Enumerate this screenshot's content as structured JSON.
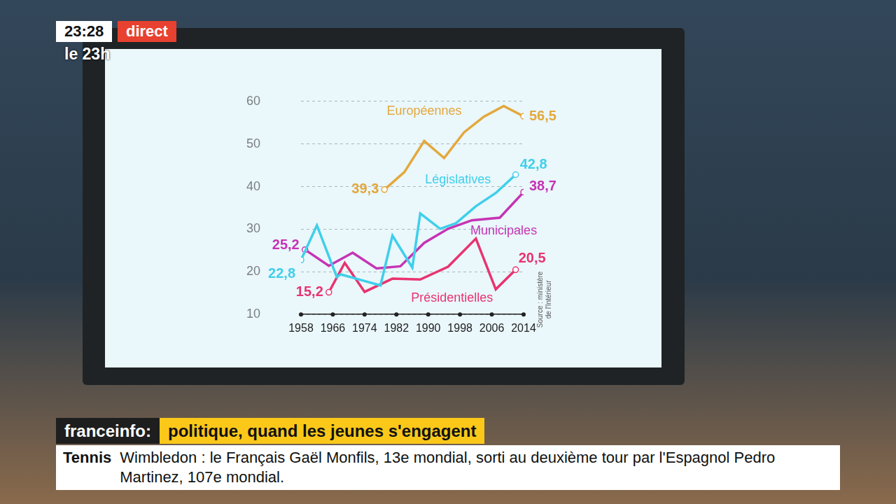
{
  "header": {
    "time": "23:28",
    "live": "direct",
    "program": "le 23h"
  },
  "banner": {
    "channel": "franceinfo:",
    "headline": "politique, quand les jeunes s'engagent"
  },
  "ticker": {
    "topic": "Tennis",
    "text": "Wimbledon : le Français Gaël Monfils, 13e mondial, sorti au deuxième tour par l'Espagnol Pedro Martinez, 107e mondial."
  },
  "chart_data": {
    "type": "line",
    "source": "Source : ministère de l'Intérieur",
    "xlim": [
      1958,
      2014
    ],
    "xticks": [
      1958,
      1966,
      1974,
      1982,
      1990,
      1998,
      2006,
      2014
    ],
    "ylim": [
      10,
      60
    ],
    "yticks": [
      10,
      20,
      30,
      40,
      50,
      60
    ],
    "grid": true,
    "series": [
      {
        "name": "Européennes",
        "color": "#e3a83c",
        "x": [
          1979,
          1984,
          1989,
          1994,
          1999,
          2004,
          2009,
          2014
        ],
        "values": [
          39.3,
          43.4,
          50.7,
          46.7,
          52.7,
          56.4,
          58.9,
          56.5
        ],
        "value_labels": [
          "39,3",
          null,
          null,
          null,
          null,
          null,
          null,
          "56,5"
        ]
      },
      {
        "name": "Législatives",
        "color": "#3fcfea",
        "x": [
          1958,
          1962,
          1967,
          1968,
          1973,
          1978,
          1981,
          1986,
          1988,
          1993,
          1997,
          2002,
          2007,
          2012
        ],
        "values": [
          22.8,
          30.9,
          18.8,
          19.4,
          18.1,
          16.8,
          28.5,
          21.0,
          33.7,
          30.1,
          31.4,
          35.4,
          38.5,
          42.8
        ],
        "value_labels": [
          "22,8",
          null,
          null,
          null,
          null,
          null,
          null,
          null,
          null,
          null,
          null,
          null,
          null,
          "42,8"
        ]
      },
      {
        "name": "Municipales",
        "color": "#c534b4",
        "x": [
          1959,
          1965,
          1971,
          1977,
          1983,
          1989,
          1995,
          2001,
          2008,
          2014
        ],
        "values": [
          25.2,
          21.4,
          24.5,
          20.8,
          21.3,
          26.8,
          30.1,
          32.1,
          32.7,
          38.7
        ],
        "value_labels": [
          "25,2",
          null,
          null,
          null,
          null,
          null,
          null,
          null,
          null,
          "38,7"
        ]
      },
      {
        "name": "Présidentielles",
        "color": "#e8336f",
        "x": [
          1965,
          1969,
          1974,
          1981,
          1988,
          1995,
          2002,
          2007,
          2012
        ],
        "values": [
          15.2,
          22.1,
          15.3,
          18.4,
          18.2,
          21.2,
          27.8,
          15.9,
          20.5
        ],
        "value_labels": [
          "15,2",
          null,
          null,
          null,
          null,
          null,
          null,
          null,
          "20,5"
        ]
      }
    ]
  }
}
